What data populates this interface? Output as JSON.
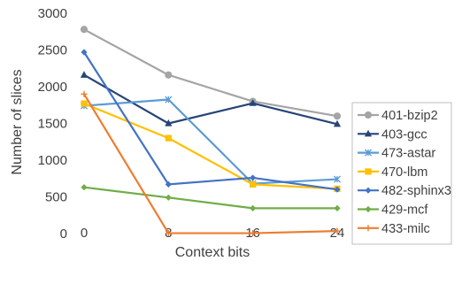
{
  "chart_data": {
    "type": "line",
    "title": "",
    "xlabel": "Context bits",
    "ylabel": "Number of slices",
    "x": [
      0,
      8,
      16,
      24
    ],
    "x_tick_labels": [
      "0",
      "8",
      "16",
      "24"
    ],
    "ylim": [
      0,
      3000
    ],
    "y_ticks": [
      0,
      500,
      1000,
      1500,
      2000,
      2500,
      3000
    ],
    "grid": false,
    "legend_position": "right",
    "series": [
      {
        "name": "401-bzip2",
        "values": [
          2780,
          2160,
          1800,
          1600
        ],
        "color": "#A5A5A5",
        "marker": "circle"
      },
      {
        "name": "403-gcc",
        "values": [
          2160,
          1500,
          1775,
          1490
        ],
        "color": "#264478",
        "marker": "triangle"
      },
      {
        "name": "473-astar",
        "values": [
          1740,
          1825,
          680,
          740
        ],
        "color": "#5B9BD5",
        "marker": "star"
      },
      {
        "name": "470-lbm",
        "values": [
          1770,
          1300,
          670,
          610
        ],
        "color": "#FFC000",
        "marker": "square"
      },
      {
        "name": "482-sphinx3",
        "values": [
          2470,
          670,
          760,
          600
        ],
        "color": "#4472C4",
        "marker": "diamond"
      },
      {
        "name": "429-mcf",
        "values": [
          630,
          490,
          345,
          345
        ],
        "color": "#70AD47",
        "marker": "diamond"
      },
      {
        "name": "433-milc",
        "values": [
          1900,
          5,
          5,
          35
        ],
        "color": "#ED7D31",
        "marker": "plus"
      }
    ]
  }
}
